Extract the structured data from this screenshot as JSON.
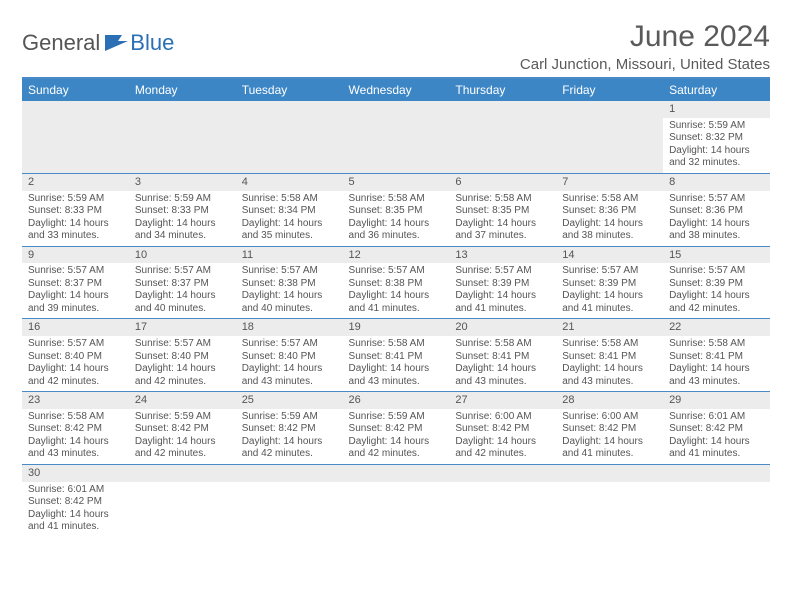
{
  "brand": {
    "part1": "General",
    "part2": "Blue"
  },
  "title": "June 2024",
  "location": "Carl Junction, Missouri, United States",
  "colors": {
    "header_bg": "#3d86c6",
    "header_text": "#ffffff",
    "divider": "#4a8ac9",
    "daynum_bg": "#ececec",
    "text": "#555555",
    "brand_blue": "#2b6fb5"
  },
  "weekdays": [
    "Sunday",
    "Monday",
    "Tuesday",
    "Wednesday",
    "Thursday",
    "Friday",
    "Saturday"
  ],
  "weeks": [
    [
      null,
      null,
      null,
      null,
      null,
      null,
      {
        "n": "1",
        "sr": "Sunrise: 5:59 AM",
        "ss": "Sunset: 8:32 PM",
        "d1": "Daylight: 14 hours",
        "d2": "and 32 minutes."
      }
    ],
    [
      {
        "n": "2",
        "sr": "Sunrise: 5:59 AM",
        "ss": "Sunset: 8:33 PM",
        "d1": "Daylight: 14 hours",
        "d2": "and 33 minutes."
      },
      {
        "n": "3",
        "sr": "Sunrise: 5:59 AM",
        "ss": "Sunset: 8:33 PM",
        "d1": "Daylight: 14 hours",
        "d2": "and 34 minutes."
      },
      {
        "n": "4",
        "sr": "Sunrise: 5:58 AM",
        "ss": "Sunset: 8:34 PM",
        "d1": "Daylight: 14 hours",
        "d2": "and 35 minutes."
      },
      {
        "n": "5",
        "sr": "Sunrise: 5:58 AM",
        "ss": "Sunset: 8:35 PM",
        "d1": "Daylight: 14 hours",
        "d2": "and 36 minutes."
      },
      {
        "n": "6",
        "sr": "Sunrise: 5:58 AM",
        "ss": "Sunset: 8:35 PM",
        "d1": "Daylight: 14 hours",
        "d2": "and 37 minutes."
      },
      {
        "n": "7",
        "sr": "Sunrise: 5:58 AM",
        "ss": "Sunset: 8:36 PM",
        "d1": "Daylight: 14 hours",
        "d2": "and 38 minutes."
      },
      {
        "n": "8",
        "sr": "Sunrise: 5:57 AM",
        "ss": "Sunset: 8:36 PM",
        "d1": "Daylight: 14 hours",
        "d2": "and 38 minutes."
      }
    ],
    [
      {
        "n": "9",
        "sr": "Sunrise: 5:57 AM",
        "ss": "Sunset: 8:37 PM",
        "d1": "Daylight: 14 hours",
        "d2": "and 39 minutes."
      },
      {
        "n": "10",
        "sr": "Sunrise: 5:57 AM",
        "ss": "Sunset: 8:37 PM",
        "d1": "Daylight: 14 hours",
        "d2": "and 40 minutes."
      },
      {
        "n": "11",
        "sr": "Sunrise: 5:57 AM",
        "ss": "Sunset: 8:38 PM",
        "d1": "Daylight: 14 hours",
        "d2": "and 40 minutes."
      },
      {
        "n": "12",
        "sr": "Sunrise: 5:57 AM",
        "ss": "Sunset: 8:38 PM",
        "d1": "Daylight: 14 hours",
        "d2": "and 41 minutes."
      },
      {
        "n": "13",
        "sr": "Sunrise: 5:57 AM",
        "ss": "Sunset: 8:39 PM",
        "d1": "Daylight: 14 hours",
        "d2": "and 41 minutes."
      },
      {
        "n": "14",
        "sr": "Sunrise: 5:57 AM",
        "ss": "Sunset: 8:39 PM",
        "d1": "Daylight: 14 hours",
        "d2": "and 41 minutes."
      },
      {
        "n": "15",
        "sr": "Sunrise: 5:57 AM",
        "ss": "Sunset: 8:39 PM",
        "d1": "Daylight: 14 hours",
        "d2": "and 42 minutes."
      }
    ],
    [
      {
        "n": "16",
        "sr": "Sunrise: 5:57 AM",
        "ss": "Sunset: 8:40 PM",
        "d1": "Daylight: 14 hours",
        "d2": "and 42 minutes."
      },
      {
        "n": "17",
        "sr": "Sunrise: 5:57 AM",
        "ss": "Sunset: 8:40 PM",
        "d1": "Daylight: 14 hours",
        "d2": "and 42 minutes."
      },
      {
        "n": "18",
        "sr": "Sunrise: 5:57 AM",
        "ss": "Sunset: 8:40 PM",
        "d1": "Daylight: 14 hours",
        "d2": "and 43 minutes."
      },
      {
        "n": "19",
        "sr": "Sunrise: 5:58 AM",
        "ss": "Sunset: 8:41 PM",
        "d1": "Daylight: 14 hours",
        "d2": "and 43 minutes."
      },
      {
        "n": "20",
        "sr": "Sunrise: 5:58 AM",
        "ss": "Sunset: 8:41 PM",
        "d1": "Daylight: 14 hours",
        "d2": "and 43 minutes."
      },
      {
        "n": "21",
        "sr": "Sunrise: 5:58 AM",
        "ss": "Sunset: 8:41 PM",
        "d1": "Daylight: 14 hours",
        "d2": "and 43 minutes."
      },
      {
        "n": "22",
        "sr": "Sunrise: 5:58 AM",
        "ss": "Sunset: 8:41 PM",
        "d1": "Daylight: 14 hours",
        "d2": "and 43 minutes."
      }
    ],
    [
      {
        "n": "23",
        "sr": "Sunrise: 5:58 AM",
        "ss": "Sunset: 8:42 PM",
        "d1": "Daylight: 14 hours",
        "d2": "and 43 minutes."
      },
      {
        "n": "24",
        "sr": "Sunrise: 5:59 AM",
        "ss": "Sunset: 8:42 PM",
        "d1": "Daylight: 14 hours",
        "d2": "and 42 minutes."
      },
      {
        "n": "25",
        "sr": "Sunrise: 5:59 AM",
        "ss": "Sunset: 8:42 PM",
        "d1": "Daylight: 14 hours",
        "d2": "and 42 minutes."
      },
      {
        "n": "26",
        "sr": "Sunrise: 5:59 AM",
        "ss": "Sunset: 8:42 PM",
        "d1": "Daylight: 14 hours",
        "d2": "and 42 minutes."
      },
      {
        "n": "27",
        "sr": "Sunrise: 6:00 AM",
        "ss": "Sunset: 8:42 PM",
        "d1": "Daylight: 14 hours",
        "d2": "and 42 minutes."
      },
      {
        "n": "28",
        "sr": "Sunrise: 6:00 AM",
        "ss": "Sunset: 8:42 PM",
        "d1": "Daylight: 14 hours",
        "d2": "and 41 minutes."
      },
      {
        "n": "29",
        "sr": "Sunrise: 6:01 AM",
        "ss": "Sunset: 8:42 PM",
        "d1": "Daylight: 14 hours",
        "d2": "and 41 minutes."
      }
    ],
    [
      {
        "n": "30",
        "sr": "Sunrise: 6:01 AM",
        "ss": "Sunset: 8:42 PM",
        "d1": "Daylight: 14 hours",
        "d2": "and 41 minutes."
      },
      null,
      null,
      null,
      null,
      null,
      null
    ]
  ]
}
